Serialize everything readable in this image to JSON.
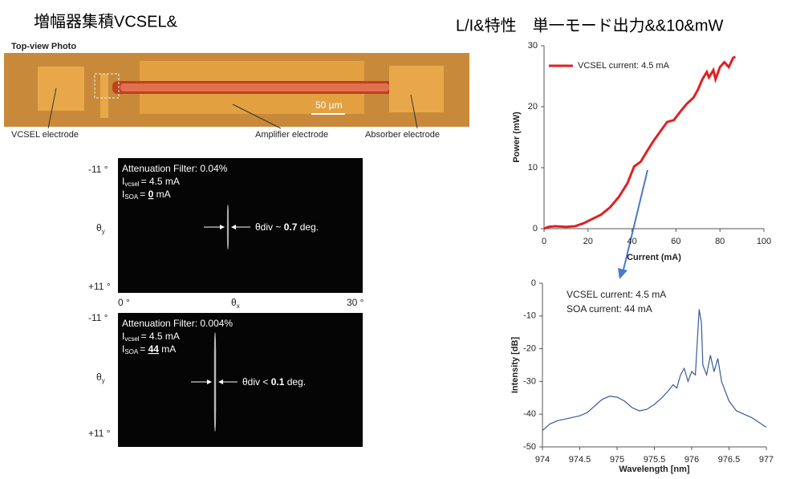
{
  "slide": {
    "title_left": "増幅器集積VCSEL&",
    "title_right": "L/I&特性　単一モード出力&&10&mW"
  },
  "photo": {
    "title": "Top-view Photo",
    "scale": "50 µm",
    "labels": [
      "VCSEL electrode",
      "Amplifier electrode",
      "Absorber electrode"
    ]
  },
  "beam": {
    "y_top": "-11 °",
    "y_bottom": "+11 °",
    "y_label": "θ",
    "y_sub": "y",
    "x_left": "0 °",
    "x_label": "θ",
    "x_sub": "x",
    "x_right": "30 °",
    "panels": [
      {
        "filter": "Attenuation Filter: 0.04%",
        "i": "I",
        "vcsel_sub": "vcsel",
        "vcsel_val": "= 4.5 mA",
        "soa_sub": "SOA",
        "soa_eq": "= ",
        "soa_val": "0",
        "soa_unit": " mA",
        "div_prefix": "θdiv ~ ",
        "div_val": "0.7",
        "div_unit": " deg."
      },
      {
        "filter": "Attenuation Filter: 0.004%",
        "i": "I",
        "vcsel_sub": "vcsel",
        "vcsel_val": "= 4.5 mA",
        "soa_sub": "SOA",
        "soa_eq": "= ",
        "soa_val": "44",
        "soa_unit": " mA",
        "div_prefix": "θdiv < ",
        "div_val": "0.1",
        "div_unit": " deg."
      }
    ]
  },
  "chart_data": [
    {
      "type": "line",
      "x_label": "Current (mA)",
      "y_label": "Power (mW)",
      "x": [
        0,
        2,
        5,
        10,
        14,
        18,
        22,
        26,
        30,
        34,
        38,
        41,
        44,
        47,
        50,
        53,
        56,
        59,
        62,
        65,
        68,
        70,
        72,
        74,
        75,
        77,
        78,
        80,
        82,
        84,
        86,
        87
      ],
      "series": [
        {
          "name": "VCSEL current: 4.5 mA",
          "color": "#e02020",
          "values": [
            0,
            0.3,
            0.4,
            0.3,
            0.4,
            0.9,
            1.6,
            2.3,
            3.5,
            5.2,
            7.5,
            10.2,
            11,
            12.8,
            14.5,
            16,
            17.5,
            17.8,
            19.2,
            20.5,
            21.5,
            22.8,
            24.5,
            25.7,
            24.8,
            26,
            24.5,
            26.5,
            27.3,
            26.5,
            28,
            28.2
          ]
        }
      ],
      "xlim": [
        0,
        100
      ],
      "xticks": [
        0,
        20,
        40,
        60,
        80,
        100
      ],
      "ylim": [
        0,
        30
      ],
      "yticks": [
        0,
        10,
        20,
        30
      ]
    },
    {
      "type": "line",
      "x_label": "Wavelength [nm]",
      "y_label": "Intensity [dB]",
      "annotations": [
        "VCSEL current: 4.5 mA",
        "SOA current: 44 mA"
      ],
      "x": [
        974,
        974.1,
        974.2,
        974.3,
        974.4,
        974.5,
        974.6,
        974.7,
        974.8,
        974.9,
        975,
        975.1,
        975.2,
        975.3,
        975.4,
        975.5,
        975.6,
        975.7,
        975.75,
        975.8,
        975.85,
        975.9,
        975.95,
        976,
        976.05,
        976.1,
        976.13,
        976.15,
        976.2,
        976.25,
        976.3,
        976.35,
        976.4,
        976.5,
        976.6,
        976.7,
        976.8,
        976.9,
        977
      ],
      "series": [
        {
          "name": null,
          "color": "#3a5a98",
          "values": [
            -45,
            -43,
            -42,
            -41.5,
            -41,
            -40.5,
            -39.5,
            -37.5,
            -35.5,
            -34.5,
            -34.8,
            -36,
            -38,
            -39,
            -38.5,
            -37,
            -35,
            -32.5,
            -31,
            -32,
            -28,
            -26,
            -30,
            -27,
            -28,
            -8,
            -12,
            -25,
            -28,
            -22,
            -27,
            -23,
            -30,
            -36,
            -39,
            -40,
            -41,
            -42.5,
            -44
          ]
        }
      ],
      "xlim": [
        974,
        977
      ],
      "xticks": [
        974,
        974.5,
        975,
        975.5,
        976,
        976.5,
        977
      ],
      "ylim": [
        -50,
        0
      ],
      "yticks": [
        0,
        -10,
        -20,
        -30,
        -40,
        -50
      ]
    }
  ]
}
